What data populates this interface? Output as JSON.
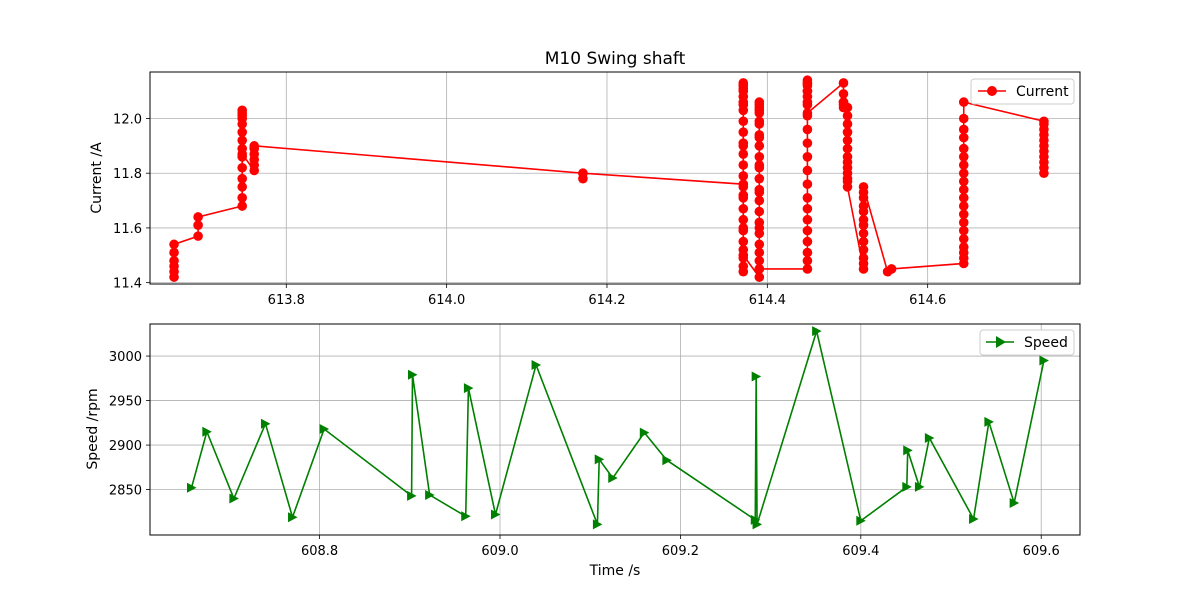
{
  "chart_data": [
    {
      "type": "line",
      "title": "M10 Swing shaft",
      "xlabel": "",
      "ylabel": "Current /A",
      "xlim": [
        613.63,
        614.79
      ],
      "ylim": [
        11.395,
        12.17
      ],
      "xticks": [
        613.8,
        614.0,
        614.2,
        614.4,
        614.6
      ],
      "xtick_labels": [
        "613.8",
        "614.0",
        "614.2",
        "614.4",
        "614.6"
      ],
      "yticks": [
        11.4,
        11.6,
        11.8,
        12.0
      ],
      "ytick_labels": [
        "11.4",
        "11.6",
        "11.8",
        "12.0"
      ],
      "grid": true,
      "legend_position": "top-right",
      "series": [
        {
          "name": "Current",
          "color": "#ff0000",
          "marker": "circle",
          "x": [
            613.66,
            613.66,
            613.66,
            613.66,
            613.66,
            613.66,
            613.69,
            613.69,
            613.69,
            613.745,
            613.745,
            613.745,
            613.745,
            613.745,
            613.745,
            613.745,
            613.745,
            613.745,
            613.745,
            613.745,
            613.745,
            613.745,
            613.745,
            613.745,
            613.76,
            613.76,
            613.76,
            613.76,
            613.76,
            613.76,
            614.17,
            614.17,
            614.17,
            614.37,
            614.37,
            614.37,
            614.37,
            614.37,
            614.37,
            614.37,
            614.37,
            614.37,
            614.37,
            614.37,
            614.37,
            614.37,
            614.37,
            614.37,
            614.37,
            614.37,
            614.37,
            614.37,
            614.37,
            614.37,
            614.37,
            614.37,
            614.37,
            614.37,
            614.37,
            614.37,
            614.37,
            614.37,
            614.39,
            614.39,
            614.39,
            614.39,
            614.39,
            614.39,
            614.39,
            614.39,
            614.39,
            614.39,
            614.39,
            614.39,
            614.39,
            614.39,
            614.39,
            614.39,
            614.39,
            614.39,
            614.39,
            614.39,
            614.39,
            614.39,
            614.39,
            614.39,
            614.39,
            614.39,
            614.39,
            614.45,
            614.45,
            614.45,
            614.45,
            614.45,
            614.45,
            614.45,
            614.45,
            614.45,
            614.45,
            614.45,
            614.45,
            614.45,
            614.45,
            614.45,
            614.45,
            614.45,
            614.45,
            614.45,
            614.45,
            614.45,
            614.45,
            614.45,
            614.45,
            614.495,
            614.495,
            614.495,
            614.495,
            614.495,
            614.495,
            614.5,
            614.5,
            614.5,
            614.5,
            614.5,
            614.5,
            614.5,
            614.5,
            614.5,
            614.5,
            614.5,
            614.5,
            614.5,
            614.52,
            614.52,
            614.52,
            614.52,
            614.52,
            614.52,
            614.52,
            614.52,
            614.52,
            614.52,
            614.52,
            614.52,
            614.52,
            614.55,
            614.555,
            614.645,
            614.645,
            614.645,
            614.645,
            614.645,
            614.645,
            614.645,
            614.645,
            614.645,
            614.645,
            614.645,
            614.645,
            614.645,
            614.645,
            614.645,
            614.645,
            614.645,
            614.645,
            614.645,
            614.645,
            614.745,
            614.745,
            614.745,
            614.745,
            614.745,
            614.745,
            614.745,
            614.745,
            614.745,
            614.745,
            614.745
          ],
          "y": [
            11.42,
            11.44,
            11.46,
            11.48,
            11.51,
            11.54,
            11.57,
            11.61,
            11.64,
            11.68,
            11.71,
            11.75,
            11.78,
            11.82,
            11.86,
            11.89,
            11.92,
            11.95,
            11.98,
            12.0,
            12.01,
            12.02,
            12.03,
            11.87,
            11.81,
            11.83,
            11.85,
            11.87,
            11.89,
            11.9,
            11.8,
            11.78,
            11.8,
            11.76,
            11.44,
            11.46,
            11.49,
            11.52,
            11.55,
            11.59,
            11.63,
            11.67,
            11.71,
            11.75,
            11.79,
            11.83,
            11.87,
            11.91,
            11.95,
            11.99,
            12.03,
            12.06,
            12.08,
            12.11,
            12.13,
            12.12,
            12.1,
            12.05,
            11.9,
            11.72,
            11.6,
            11.5,
            11.42,
            11.45,
            11.48,
            11.51,
            11.54,
            11.58,
            11.62,
            11.66,
            11.7,
            11.74,
            11.78,
            11.82,
            11.86,
            11.9,
            11.94,
            11.98,
            12.02,
            12.04,
            12.06,
            12.05,
            12.03,
            11.99,
            11.93,
            11.83,
            11.73,
            11.6,
            11.45,
            11.45,
            11.48,
            11.51,
            11.55,
            11.59,
            11.63,
            11.67,
            11.71,
            11.76,
            11.81,
            11.86,
            11.91,
            11.96,
            12.01,
            12.05,
            12.08,
            12.1,
            12.12,
            12.13,
            12.14,
            12.13,
            12.1,
            12.06,
            12.02,
            12.13,
            12.09,
            12.06,
            12.04,
            12.05,
            12.06,
            12.04,
            12.01,
            11.98,
            11.95,
            11.92,
            11.89,
            11.86,
            11.84,
            11.82,
            11.8,
            11.78,
            11.77,
            11.75,
            11.45,
            11.47,
            11.49,
            11.52,
            11.55,
            11.58,
            11.61,
            11.63,
            11.66,
            11.68,
            11.71,
            11.73,
            11.75,
            11.44,
            11.45,
            11.47,
            11.49,
            11.51,
            11.53,
            11.56,
            11.59,
            11.62,
            11.65,
            11.68,
            11.71,
            11.74,
            11.77,
            11.8,
            11.83,
            11.86,
            11.89,
            11.93,
            11.96,
            12.0,
            12.06,
            11.99,
            11.8,
            11.82,
            11.84,
            11.86,
            11.88,
            11.9,
            11.92,
            11.94,
            11.96,
            11.98
          ]
        }
      ]
    },
    {
      "type": "line",
      "title": "",
      "xlabel": "Time /s",
      "ylabel": "Speed /rpm",
      "xlim": [
        608.612,
        609.643
      ],
      "ylim": [
        2799,
        3036
      ],
      "xticks": [
        608.8,
        609.0,
        609.2,
        609.4,
        609.6
      ],
      "xtick_labels": [
        "608.8",
        "609.0",
        "609.2",
        "609.4",
        "609.6"
      ],
      "yticks": [
        2850,
        2900,
        2950,
        3000
      ],
      "ytick_labels": [
        "2850",
        "2900",
        "2950",
        "3000"
      ],
      "grid": true,
      "legend_position": "top-right",
      "series": [
        {
          "name": "Speed",
          "color": "#008000",
          "marker": "triangle-right",
          "x": [
            608.658,
            608.675,
            608.705,
            608.74,
            608.77,
            608.805,
            608.902,
            608.903,
            608.922,
            608.962,
            608.965,
            608.995,
            609.04,
            609.108,
            609.11,
            609.125,
            609.16,
            609.185,
            609.283,
            609.284,
            609.285,
            609.351,
            609.4,
            609.451,
            609.452,
            609.465,
            609.476,
            609.525,
            609.542,
            609.57,
            609.603
          ],
          "y": [
            2852,
            2915,
            2840,
            2924,
            2819,
            2918,
            2843,
            2979,
            2844,
            2820,
            2964,
            2822,
            2990,
            2811,
            2884,
            2863,
            2914,
            2883,
            2816,
            2977,
            2811,
            3028,
            2815,
            2853,
            2894,
            2853,
            2908,
            2817,
            2926,
            2835,
            2995
          ]
        }
      ]
    }
  ]
}
